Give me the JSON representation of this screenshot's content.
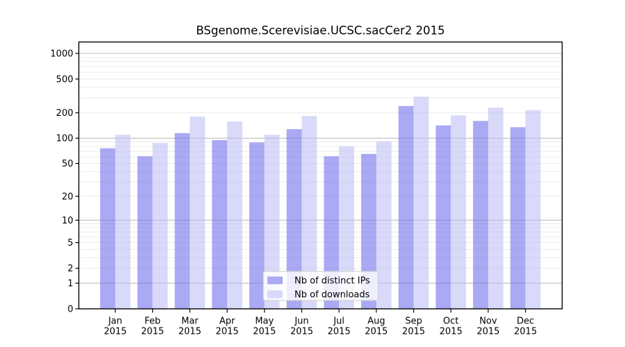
{
  "chart_data": {
    "type": "bar",
    "title": "BSgenome.Scerevisiae.UCSC.sacCer2 2015",
    "categories": [
      "Jan",
      "Feb",
      "Mar",
      "Apr",
      "May",
      "Jun",
      "Jul",
      "Aug",
      "Sep",
      "Oct",
      "Nov",
      "Dec"
    ],
    "category_year": "2015",
    "series": [
      {
        "name": "Nb of distinct IPs",
        "color": "#a9a9f4",
        "values": [
          76,
          61,
          115,
          95,
          89,
          128,
          61,
          65,
          240,
          142,
          160,
          135
        ]
      },
      {
        "name": "Nb of downloads",
        "color": "#d9d9fa",
        "values": [
          110,
          88,
          180,
          158,
          110,
          183,
          80,
          92,
          310,
          186,
          230,
          215
        ]
      }
    ],
    "yscale": "log1p",
    "y_tick_labels": [
      0,
      1,
      2,
      5,
      10,
      20,
      50,
      100,
      200,
      500,
      1000
    ],
    "ylim": [
      0,
      1400
    ],
    "grid": "on",
    "legend_position": "lower-center-inside",
    "xlabel": "",
    "ylabel": ""
  },
  "colors": {
    "background": "#ffffff",
    "frame": "#000000",
    "grid_major": "#bdbdbd",
    "grid_minor": "#e8e8e8",
    "tick_text": "#000000",
    "legend_border": "#cccccc",
    "legend_fill": "#ffffff"
  }
}
